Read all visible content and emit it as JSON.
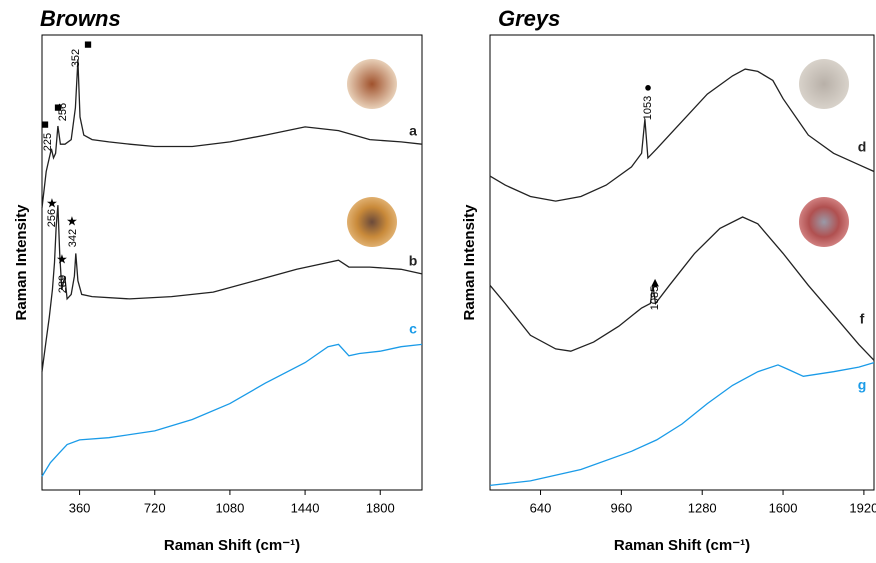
{
  "chart_data": [
    {
      "type": "line",
      "title": "Browns",
      "x_label": "Raman Shift (cm⁻¹)",
      "y_label": "Raman Intensity",
      "xlim": [
        180,
        2000
      ],
      "xticks": [
        360,
        720,
        1080,
        1440,
        1800
      ],
      "ylim": [
        0,
        100
      ],
      "series": [
        {
          "name": "a",
          "color": "#222222",
          "x": [
            180,
            200,
            215,
            225,
            235,
            245,
            256,
            268,
            290,
            320,
            340,
            352,
            362,
            380,
            420,
            500,
            600,
            720,
            900,
            1080,
            1250,
            1440,
            1600,
            1750,
            1900,
            2000
          ],
          "values": [
            62,
            70,
            73,
            75,
            73,
            74,
            80,
            76,
            76,
            77,
            84,
            94.5,
            82,
            78,
            77,
            76.5,
            76,
            75.5,
            75.5,
            76.5,
            78,
            79.8,
            79,
            77,
            76.5,
            76
          ]
        },
        {
          "name": "b",
          "color": "#222222",
          "x": [
            180,
            200,
            215,
            230,
            240,
            248,
            256,
            265,
            275,
            289,
            300,
            320,
            335,
            342,
            352,
            370,
            420,
            600,
            800,
            1000,
            1200,
            1400,
            1500,
            1600,
            1650,
            1750,
            1900,
            2000
          ],
          "values": [
            26,
            33,
            38,
            44,
            50,
            58,
            62.6,
            52,
            44,
            47,
            42,
            43,
            47,
            52,
            46,
            43,
            42.5,
            42,
            42.5,
            43.5,
            46,
            48.5,
            49.5,
            50.5,
            49,
            49,
            48.5,
            47.5
          ]
        },
        {
          "name": "c",
          "color": "#1a9be8",
          "x": [
            180,
            220,
            260,
            300,
            360,
            500,
            720,
            900,
            1080,
            1250,
            1440,
            1550,
            1600,
            1650,
            1700,
            1800,
            1900,
            2000
          ],
          "values": [
            3,
            6,
            8,
            10,
            11,
            11.5,
            13,
            15.5,
            19,
            23.5,
            28,
            31.5,
            32,
            29.5,
            30,
            30.5,
            31.5,
            32
          ]
        }
      ],
      "annotations": [
        {
          "text": "225",
          "marker": "■"
        },
        {
          "text": "256",
          "marker": "■"
        },
        {
          "text": "352",
          "marker": "■"
        },
        {
          "text": "256",
          "marker": "★"
        },
        {
          "text": "289",
          "marker": "★"
        },
        {
          "text": "342",
          "marker": "★"
        }
      ]
    },
    {
      "type": "line",
      "title": "Greys",
      "x_label": "Raman Shift (cm⁻¹)",
      "y_label": "Raman Intensity",
      "xlim": [
        440,
        1960
      ],
      "xticks": [
        640,
        960,
        1280,
        1600,
        1920
      ],
      "ylim": [
        0,
        100
      ],
      "series": [
        {
          "name": "d",
          "color": "#222222",
          "x": [
            440,
            500,
            600,
            700,
            800,
            900,
            1000,
            1040,
            1053,
            1065,
            1100,
            1200,
            1300,
            1400,
            1450,
            1500,
            1560,
            1600,
            1700,
            1800,
            1900,
            1960
          ],
          "values": [
            69,
            67,
            64.5,
            63.5,
            64.5,
            67,
            71,
            74,
            81.5,
            73,
            75,
            81,
            87,
            91,
            92.5,
            92,
            90,
            86,
            78,
            74,
            71.5,
            70
          ]
        },
        {
          "name": "f",
          "color": "#222222",
          "x": [
            440,
            500,
            600,
            700,
            760,
            850,
            950,
            1040,
            1075,
            1085,
            1095,
            1150,
            1250,
            1350,
            1440,
            1500,
            1600,
            1700,
            1800,
            1900,
            1960
          ],
          "values": [
            45,
            41,
            34,
            31,
            30.5,
            32.5,
            36,
            40,
            41,
            45,
            41,
            45,
            52,
            57.5,
            60,
            58.5,
            52,
            45,
            38.5,
            32,
            28.5
          ]
        },
        {
          "name": "g",
          "color": "#1a9be8",
          "x": [
            440,
            600,
            800,
            1000,
            1100,
            1200,
            1300,
            1400,
            1500,
            1580,
            1620,
            1680,
            1800,
            1900,
            1960
          ],
          "values": [
            1,
            2,
            4.5,
            8.5,
            11,
            14.5,
            19,
            23,
            26,
            27.5,
            26.5,
            25,
            26,
            27,
            28
          ]
        }
      ],
      "annotations": [
        {
          "text": "1053",
          "marker": "●"
        },
        {
          "text": "1085",
          "marker": "▲"
        }
      ]
    }
  ]
}
